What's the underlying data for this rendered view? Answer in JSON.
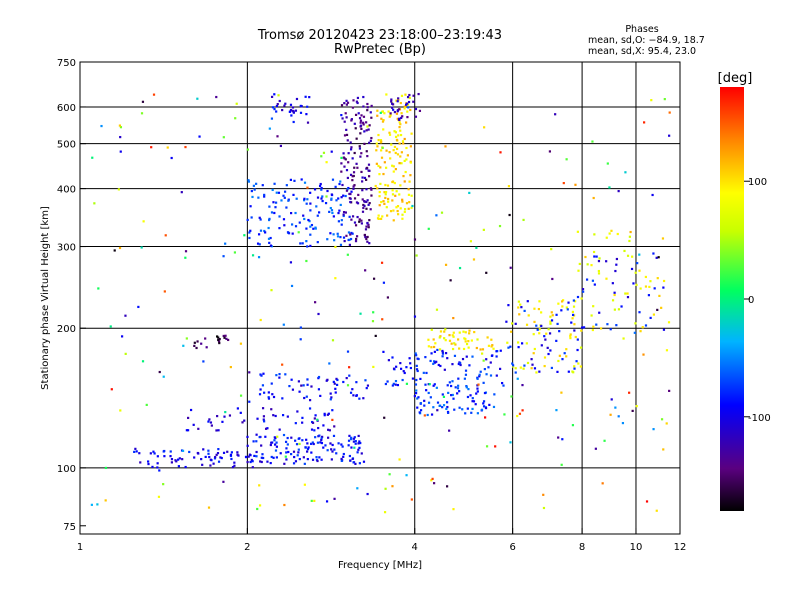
{
  "chart_data": {
    "type": "scatter",
    "title": "Tromsø 20120423 23:18:00–23:19:43",
    "subtitle": "RwPretec (Bp)",
    "xlabel": "Frequency [MHz]",
    "ylabel": "Stationary phase Virtual Height [km]",
    "x_scale": "log",
    "y_scale": "log",
    "xlim": [
      1,
      12
    ],
    "ylim": [
      72,
      750
    ],
    "x_ticks": [
      1,
      2,
      4,
      6,
      8,
      10,
      12
    ],
    "x_tick_labels": [
      "1",
      "2",
      "4",
      "6",
      "8",
      "10",
      "12"
    ],
    "y_ticks": [
      75,
      100,
      200,
      300,
      400,
      500,
      600,
      750
    ],
    "y_tick_labels": [
      "75",
      "100",
      "200",
      "300",
      "400",
      "500",
      "600",
      "750"
    ],
    "grid": true,
    "grid_x": [
      2,
      4,
      6,
      8,
      10
    ],
    "grid_y": [
      100,
      200,
      300,
      400,
      500,
      600
    ],
    "stats": {
      "heading": "Phases",
      "line1": "mean, sd,O:  −84.9,  18.7",
      "line2": "mean, sd,X:   95.4,  23.0"
    },
    "colorbar": {
      "label": "[deg]",
      "range": [
        -180,
        180
      ],
      "ticks": [
        100,
        0,
        -100
      ],
      "tick_labels": [
        "100",
        "0",
        "-100"
      ]
    },
    "clusters": [
      {
        "f": [
          2.0,
          3.25
        ],
        "h": [
          102,
          118
        ],
        "phase": -90,
        "n": 140
      },
      {
        "f": [
          1.25,
          2.05
        ],
        "h": [
          100,
          110
        ],
        "phase": -95,
        "n": 70
      },
      {
        "f": [
          2.1,
          3.3
        ],
        "h": [
          140,
          160
        ],
        "phase": -90,
        "n": 60
      },
      {
        "f": [
          1.55,
          2.9
        ],
        "h": [
          120,
          135
        ],
        "phase": -100,
        "n": 55
      },
      {
        "f": [
          1.6,
          1.85
        ],
        "h": [
          180,
          195
        ],
        "phase": -155,
        "n": 18
      },
      {
        "f": [
          2.0,
          3.1
        ],
        "h": [
          300,
          420
        ],
        "phase": -75,
        "n": 150
      },
      {
        "f": [
          2.95,
          3.35
        ],
        "h": [
          300,
          640
        ],
        "phase": -135,
        "n": 160
      },
      {
        "f": [
          3.4,
          3.95
        ],
        "h": [
          340,
          640
        ],
        "phase": 100,
        "n": 150
      },
      {
        "f": [
          2.2,
          2.6
        ],
        "h": [
          555,
          640
        ],
        "phase": -100,
        "n": 30
      },
      {
        "f": [
          3.6,
          4.1
        ],
        "h": [
          560,
          640
        ],
        "phase": -120,
        "n": 30
      },
      {
        "f": [
          3.5,
          5.8
        ],
        "h": [
          150,
          180
        ],
        "phase": -85,
        "n": 100
      },
      {
        "f": [
          4.0,
          5.6
        ],
        "h": [
          130,
          150
        ],
        "phase": -75,
        "n": 70
      },
      {
        "f": [
          4.2,
          5.6
        ],
        "h": [
          180,
          200
        ],
        "phase": 95,
        "n": 50
      },
      {
        "f": [
          5.8,
          8.0
        ],
        "h": [
          160,
          230
        ],
        "phase": 90,
        "n": 60
      },
      {
        "f": [
          5.8,
          8.0
        ],
        "h": [
          160,
          230
        ],
        "phase": -90,
        "n": 50
      },
      {
        "f": [
          7.8,
          11.5
        ],
        "h": [
          190,
          330
        ],
        "phase": 85,
        "n": 50
      },
      {
        "f": [
          7.8,
          11.5
        ],
        "h": [
          190,
          290
        ],
        "phase": -90,
        "n": 35
      },
      {
        "f": [
          1.05,
          11.5
        ],
        "h": [
          80,
          640
        ],
        "phase": 0,
        "n": 260
      }
    ]
  }
}
